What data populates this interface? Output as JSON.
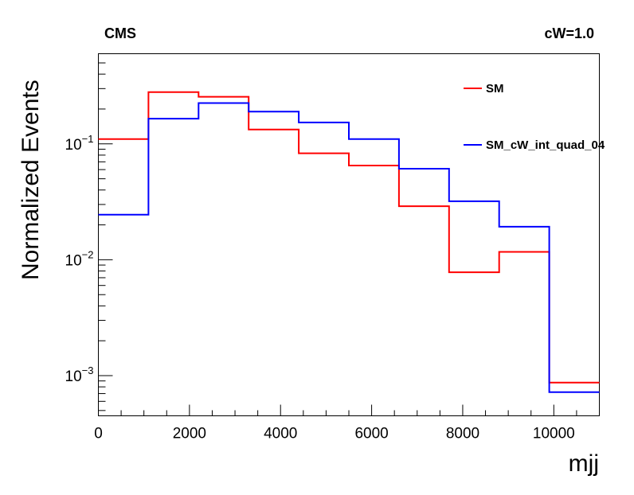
{
  "chart_data": {
    "type": "line",
    "style": "step histogram",
    "header_left": "CMS",
    "header_right": "cW=1.0",
    "xlabel": "mjj",
    "ylabel": "Normalized Events",
    "xlim": [
      0,
      11000
    ],
    "ylim": [
      0.00045,
      0.6
    ],
    "yscale": "log",
    "grid": false,
    "legend_position": "top-right",
    "bin_edges": [
      0,
      1100,
      2200,
      3300,
      4400,
      5500,
      6600,
      7700,
      8800,
      9900,
      11000
    ],
    "x_ticks": [
      0,
      2000,
      4000,
      6000,
      8000,
      10000
    ],
    "x_tick_labels": [
      "0",
      "2000",
      "4000",
      "6000",
      "8000",
      "10000"
    ],
    "y_ticks": [
      0.001,
      0.01,
      0.1
    ],
    "y_tick_labels": [
      {
        "base": "10",
        "exp": "−3"
      },
      {
        "base": "10",
        "exp": "−2"
      },
      {
        "base": "10",
        "exp": "−1"
      }
    ],
    "series": [
      {
        "name": "SM",
        "color": "#ff0000",
        "values": [
          0.11,
          0.28,
          0.255,
          0.133,
          0.083,
          0.065,
          0.029,
          0.0078,
          0.0117,
          0.00087
        ]
      },
      {
        "name": "SM_cW_int_quad_04",
        "color": "#0000ff",
        "values": [
          0.0245,
          0.165,
          0.225,
          0.19,
          0.153,
          0.11,
          0.061,
          0.032,
          0.0193,
          0.00072
        ]
      }
    ]
  }
}
